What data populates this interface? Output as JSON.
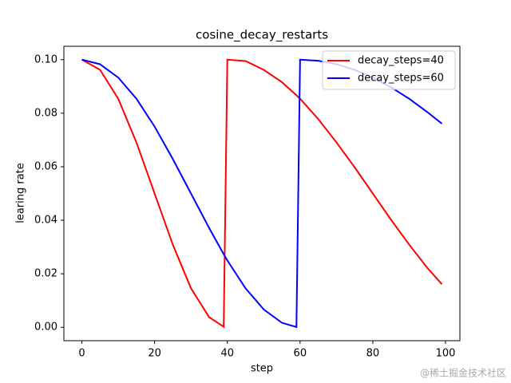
{
  "chart_data": {
    "type": "line",
    "title": "cosine_decay_restarts",
    "xlabel": "step",
    "ylabel": "learing rate",
    "x": [
      0,
      5,
      10,
      15,
      20,
      25,
      30,
      35,
      39,
      40,
      45,
      50,
      55,
      59,
      60,
      65,
      70,
      75,
      80,
      85,
      90,
      95,
      99
    ],
    "series": [
      {
        "name": "decay_steps=40",
        "color": "#ff0000",
        "values": [
          0.1,
          0.0962,
          0.0854,
          0.0691,
          0.05,
          0.0309,
          0.0146,
          0.0038,
          0.0002,
          0.1,
          0.0995,
          0.0962,
          0.0916,
          0.0867,
          0.0854,
          0.0778,
          0.0691,
          0.0598,
          0.05,
          0.0402,
          0.0309,
          0.0222,
          0.0161
        ]
      },
      {
        "name": "decay_steps=60",
        "color": "#0000ff",
        "values": [
          0.1,
          0.0983,
          0.0933,
          0.0854,
          0.075,
          0.0629,
          0.05,
          0.0371,
          0.0273,
          0.025,
          0.0146,
          0.0067,
          0.0017,
          0.0001,
          0.1,
          0.0996,
          0.0983,
          0.0962,
          0.0933,
          0.0897,
          0.0854,
          0.0804,
          0.0761
        ]
      }
    ],
    "xlim": [
      -4.95,
      103.95
    ],
    "xticks": [
      0,
      20,
      40,
      60,
      80,
      100
    ],
    "ylim": [
      -0.005,
      0.105
    ],
    "yticks": [
      {
        "value": 0,
        "label": "0.00"
      },
      {
        "value": 0.02,
        "label": "0.02"
      },
      {
        "value": 0.04,
        "label": "0.04"
      },
      {
        "value": 0.06,
        "label": "0.06"
      },
      {
        "value": 0.08,
        "label": "0.08"
      },
      {
        "value": 0.1,
        "label": "0.10"
      }
    ],
    "legend": "upper right",
    "watermark": "@稀土掘金技术社区"
  }
}
